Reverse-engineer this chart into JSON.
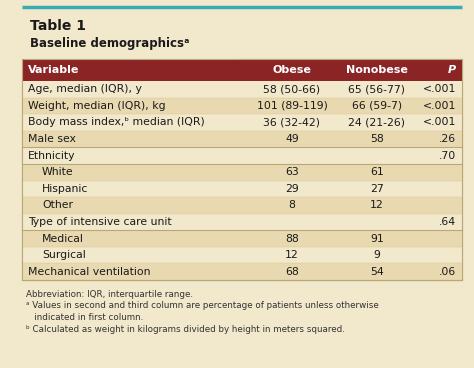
{
  "title_line1": "Table 1",
  "title_line2": "Baseline demographicsᵃ",
  "header": [
    "Variable",
    "Obese",
    "Nonobese",
    "P"
  ],
  "rows": [
    {
      "var": "Age, median (IQR), y",
      "obese": "58 (50-66)",
      "nonobese": "65 (56-77)",
      "p": "<.001",
      "indent": false
    },
    {
      "var": "Weight, median (IQR), kg",
      "obese": "101 (89-119)",
      "nonobese": "66 (59-7)",
      "p": "<.001",
      "indent": false
    },
    {
      "var": "Body mass index,ᵇ median (IQR)",
      "obese": "36 (32-42)",
      "nonobese": "24 (21-26)",
      "p": "<.001",
      "indent": false
    },
    {
      "var": "Male sex",
      "obese": "49",
      "nonobese": "58",
      "p": ".26",
      "indent": false
    },
    {
      "var": "Ethnicity",
      "obese": "",
      "nonobese": "",
      "p": ".70",
      "indent": false
    },
    {
      "var": "White",
      "obese": "63",
      "nonobese": "61",
      "p": "",
      "indent": true
    },
    {
      "var": "Hispanic",
      "obese": "29",
      "nonobese": "27",
      "p": "",
      "indent": true
    },
    {
      "var": "Other",
      "obese": "8",
      "nonobese": "12",
      "p": "",
      "indent": true
    },
    {
      "var": "Type of intensive care unit",
      "obese": "",
      "nonobese": "",
      "p": ".64",
      "indent": false
    },
    {
      "var": "Medical",
      "obese": "88",
      "nonobese": "91",
      "p": "",
      "indent": true
    },
    {
      "var": "Surgical",
      "obese": "12",
      "nonobese": "9",
      "p": "",
      "indent": true
    },
    {
      "var": "Mechanical ventilation",
      "obese": "68",
      "nonobese": "54",
      "p": ".06",
      "indent": false
    }
  ],
  "footnotes": [
    "Abbreviation: IQR, interquartile range.",
    "ᵃ Values in second and third column are percentage of patients unless otherwise",
    "   indicated in first column.",
    "ᵇ Calculated as weight in kilograms divided by height in meters squared."
  ],
  "header_bg": "#8B2525",
  "header_fg": "#FFFFFF",
  "row_bg_light": "#F2E8CC",
  "row_bg_dark": "#E8D9B0",
  "title_bg": "#F2E8CC",
  "outer_bg": "#F2E8CC",
  "border_color": "#B8A878",
  "divider_major": "#B8A878",
  "divider_minor": "#D8C898",
  "top_border_color": "#3AABB5",
  "text_color": "#1A1A1A",
  "footnote_color": "#333333",
  "header_fontsize": 8.0,
  "row_fontsize": 7.8,
  "title_fontsize1": 10.0,
  "title_fontsize2": 8.5,
  "footnote_fontsize": 6.3,
  "major_divider_rows": [
    3,
    4,
    8,
    11
  ]
}
